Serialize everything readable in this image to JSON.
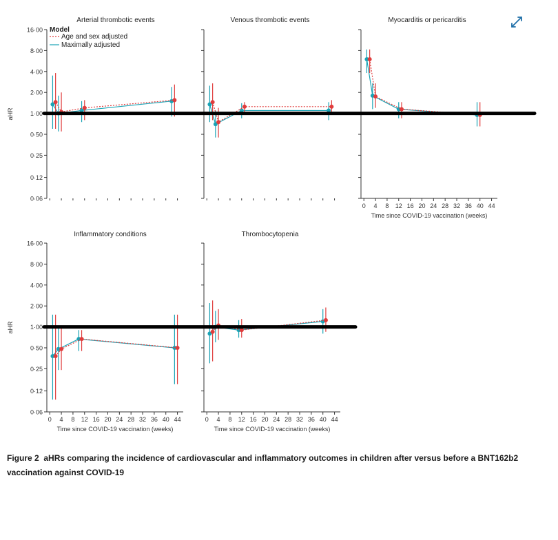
{
  "chart_data": {
    "type": "line",
    "ylabel": "aHR",
    "xlabel": "Time since COVID-19 vaccination (weeks)",
    "y_ticks": [
      0.06,
      0.12,
      0.25,
      0.5,
      1.0,
      2.0,
      4.0,
      8.0,
      16.0
    ],
    "y_tick_labels": [
      "0·06",
      "0·12",
      "0·25",
      "0·50",
      "1·00",
      "2·00",
      "4·00",
      "8·00",
      "16·00"
    ],
    "x_ticks": [
      0,
      4,
      8,
      12,
      16,
      20,
      24,
      28,
      32,
      36,
      40,
      44
    ],
    "x_tick_labels": [
      "0",
      "4",
      "8",
      "12",
      "16",
      "20",
      "24",
      "28",
      "32",
      "36",
      "40",
      "44"
    ],
    "reference_line": 1.0,
    "legend": {
      "title": "Model",
      "entries": [
        {
          "name": "Age and sex adjusted",
          "color": "#e03c3c",
          "style": "dotted"
        },
        {
          "name": "Maximally adjusted",
          "color": "#1aa3b5",
          "style": "solid"
        }
      ]
    },
    "panels": [
      {
        "title": "Arterial thrombotic events",
        "series": [
          {
            "name": "Age and sex adjusted",
            "points": [
              {
                "x": 2,
                "y": 1.45,
                "lo": 0.6,
                "hi": 3.8
              },
              {
                "x": 4,
                "y": 1.05,
                "lo": 0.55,
                "hi": 2.0
              },
              {
                "x": 12,
                "y": 1.2,
                "lo": 0.8,
                "hi": 1.55
              },
              {
                "x": 43,
                "y": 1.55,
                "lo": 0.9,
                "hi": 2.6
              }
            ]
          },
          {
            "name": "Maximally adjusted",
            "points": [
              {
                "x": 1,
                "y": 1.35,
                "lo": 0.6,
                "hi": 3.5
              },
              {
                "x": 3,
                "y": 1.0,
                "lo": 0.55,
                "hi": 1.8
              },
              {
                "x": 11,
                "y": 1.1,
                "lo": 0.75,
                "hi": 1.5
              },
              {
                "x": 42,
                "y": 1.5,
                "lo": 0.9,
                "hi": 2.4
              }
            ]
          }
        ]
      },
      {
        "title": "Venous thrombotic events",
        "series": [
          {
            "name": "Age and sex adjusted",
            "points": [
              {
                "x": 2,
                "y": 1.45,
                "lo": 0.8,
                "hi": 2.7
              },
              {
                "x": 4,
                "y": 0.75,
                "lo": 0.45,
                "hi": 1.2
              },
              {
                "x": 13,
                "y": 1.25,
                "lo": 1.0,
                "hi": 1.45
              },
              {
                "x": 43,
                "y": 1.25,
                "lo": 0.95,
                "hi": 1.55
              }
            ]
          },
          {
            "name": "Maximally adjusted",
            "points": [
              {
                "x": 1,
                "y": 1.35,
                "lo": 0.75,
                "hi": 2.5
              },
              {
                "x": 3,
                "y": 0.7,
                "lo": 0.45,
                "hi": 1.1
              },
              {
                "x": 12,
                "y": 1.1,
                "lo": 0.85,
                "hi": 1.4
              },
              {
                "x": 42,
                "y": 1.1,
                "lo": 0.8,
                "hi": 1.45
              }
            ]
          }
        ]
      },
      {
        "title": "Myocarditis or pericarditis",
        "series": [
          {
            "name": "Age and sex adjusted",
            "points": [
              {
                "x": 2,
                "y": 6.0,
                "lo": 3.8,
                "hi": 8.3
              },
              {
                "x": 4,
                "y": 1.75,
                "lo": 1.2,
                "hi": 2.7
              },
              {
                "x": 13,
                "y": 1.15,
                "lo": 0.85,
                "hi": 1.45
              },
              {
                "x": 40,
                "y": 0.95,
                "lo": 0.65,
                "hi": 1.45
              }
            ]
          },
          {
            "name": "Maximally adjusted",
            "points": [
              {
                "x": 1,
                "y": 6.0,
                "lo": 3.8,
                "hi": 8.3
              },
              {
                "x": 3,
                "y": 1.8,
                "lo": 1.15,
                "hi": 2.7
              },
              {
                "x": 12,
                "y": 1.15,
                "lo": 0.85,
                "hi": 1.45
              },
              {
                "x": 39,
                "y": 0.95,
                "lo": 0.65,
                "hi": 1.45
              }
            ]
          }
        ]
      },
      {
        "title": "Inflammatory conditions",
        "series": [
          {
            "name": "Age and sex adjusted",
            "points": [
              {
                "x": 2,
                "y": 0.38,
                "lo": 0.09,
                "hi": 1.5
              },
              {
                "x": 4,
                "y": 0.48,
                "lo": 0.24,
                "hi": 0.95
              },
              {
                "x": 11,
                "y": 0.67,
                "lo": 0.45,
                "hi": 0.9
              },
              {
                "x": 44,
                "y": 0.5,
                "lo": 0.15,
                "hi": 1.5
              }
            ]
          },
          {
            "name": "Maximally adjusted",
            "points": [
              {
                "x": 1,
                "y": 0.38,
                "lo": 0.09,
                "hi": 1.5
              },
              {
                "x": 3,
                "y": 0.48,
                "lo": 0.24,
                "hi": 0.95
              },
              {
                "x": 10,
                "y": 0.67,
                "lo": 0.45,
                "hi": 0.9
              },
              {
                "x": 43,
                "y": 0.5,
                "lo": 0.15,
                "hi": 1.5
              }
            ]
          }
        ]
      },
      {
        "title": "Thrombocytopenia",
        "series": [
          {
            "name": "Age and sex adjusted",
            "points": [
              {
                "x": 2,
                "y": 0.85,
                "lo": 0.32,
                "hi": 2.4
              },
              {
                "x": 4,
                "y": 1.05,
                "lo": 0.65,
                "hi": 1.8
              },
              {
                "x": 12,
                "y": 0.9,
                "lo": 0.7,
                "hi": 1.3
              },
              {
                "x": 41,
                "y": 1.25,
                "lo": 0.85,
                "hi": 1.9
              }
            ]
          },
          {
            "name": "Maximally adjusted",
            "points": [
              {
                "x": 1,
                "y": 0.8,
                "lo": 0.3,
                "hi": 2.2
              },
              {
                "x": 3,
                "y": 1.0,
                "lo": 0.6,
                "hi": 1.7
              },
              {
                "x": 11,
                "y": 0.9,
                "lo": 0.7,
                "hi": 1.25
              },
              {
                "x": 40,
                "y": 1.2,
                "lo": 0.8,
                "hi": 1.8
              }
            ]
          }
        ]
      }
    ]
  },
  "caption": {
    "label": "Figure 2",
    "text": "aHRs comparing the incidence of cardiovascular and inflammatory outcomes in children after versus before a BNT162b2 vaccination against COVID-19"
  },
  "colors": {
    "age_sex": "#e03c3c",
    "max_adj": "#1aa3b5",
    "axis": "#333333",
    "reference": "#000000"
  },
  "icons": {
    "expand": "expand-icon"
  }
}
